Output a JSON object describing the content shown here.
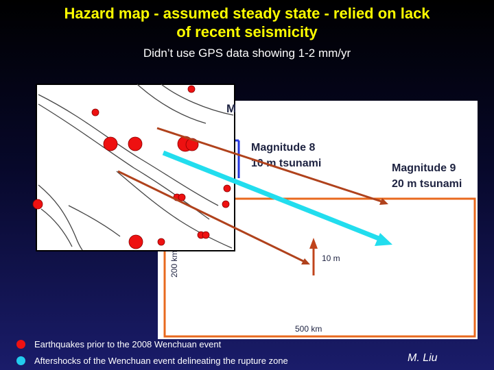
{
  "slide": {
    "title_line1": "Hazard map - assumed steady state - relied on lack",
    "title_line2": "of recent seismicity",
    "subtitle": "Didn’t use GPS data showing 1-2 mm/yr",
    "credit": "M. Liu"
  },
  "figure": {
    "panel_heading": "M",
    "mag8_line1": "Magnitude 8",
    "mag8_line2": "10 m tsunami",
    "mag9_line1": "Magnitude 9",
    "mag9_line2": "20 m tsunami",
    "height_scale": "10 m",
    "distance_scale_x": "500 km",
    "distance_scale_y": "200 km"
  },
  "legend": [
    {
      "label": "Earthquakes prior to the 2008 Wenchuan event",
      "color": "#ee1111"
    },
    {
      "label": "Aftershocks of the Wenchuan event delineating the rupture zone",
      "color": "#22ccee"
    }
  ],
  "colors": {
    "title": "#ffff00",
    "earthquake": "#ee1111",
    "aftershock_line": "#22ddee",
    "fault_line": "#b0421c",
    "tsunami_box": "#e8691e",
    "text_dark": "#1d2240",
    "blue_outline": "#2233dd"
  }
}
